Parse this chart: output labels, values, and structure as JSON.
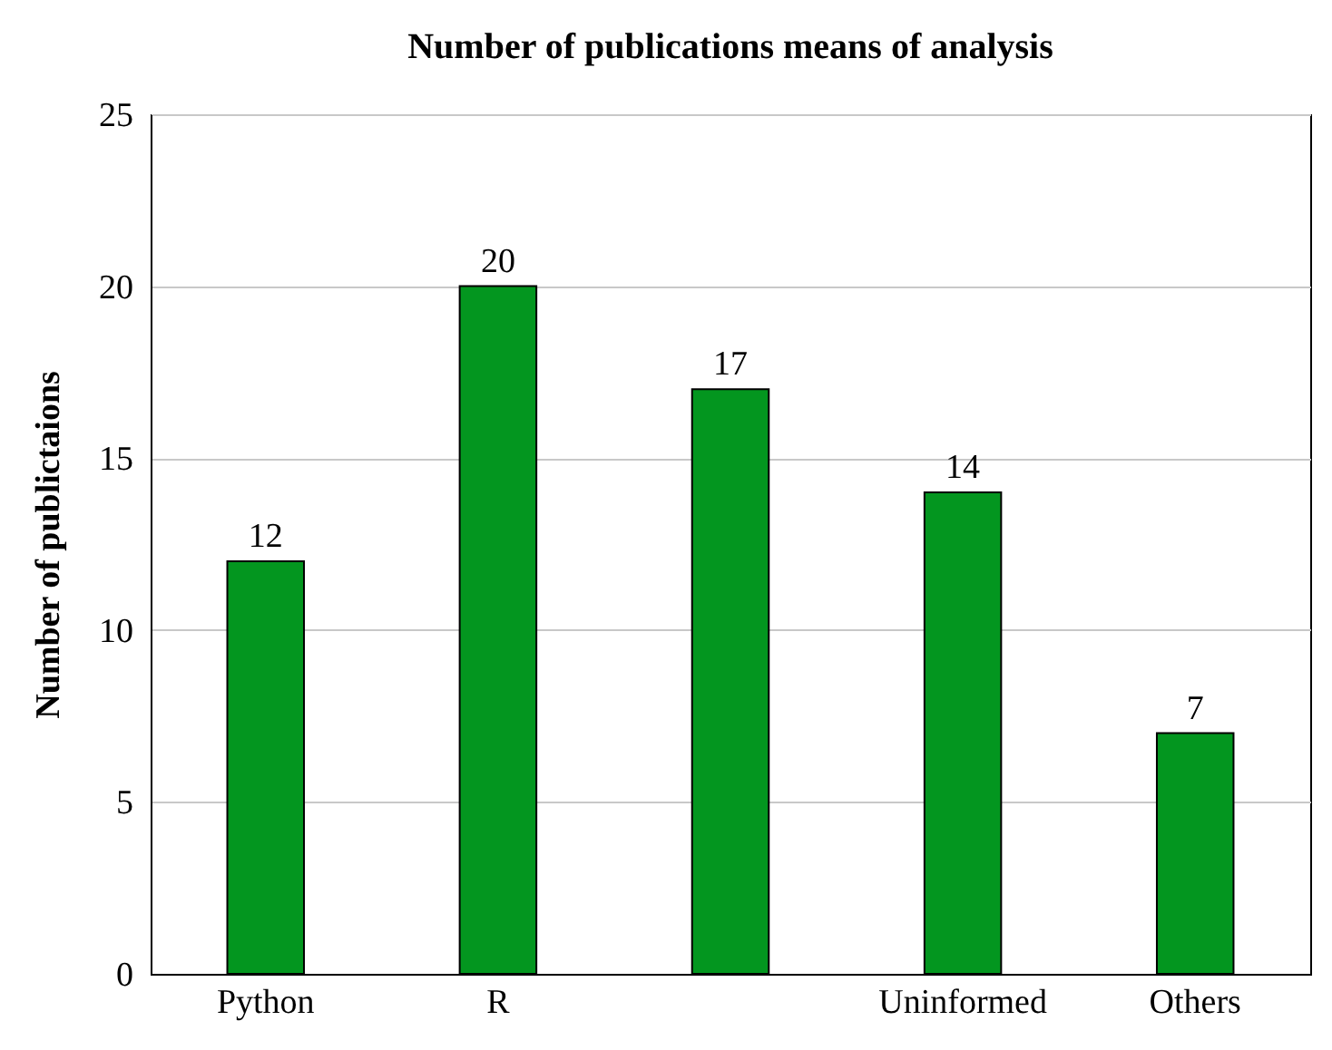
{
  "chart_data": {
    "type": "bar",
    "title": "Number of publications means of analysis",
    "ylabel": "Number of publictaions",
    "categories": [
      "Python",
      "R",
      null,
      "Uninformed",
      "Others"
    ],
    "values": [
      12,
      20,
      17,
      14,
      7
    ],
    "color": "#03961f",
    "ylim": [
      0,
      25
    ],
    "yticks": [
      0,
      5,
      10,
      15,
      20,
      25
    ],
    "grid": "y",
    "data_labels": true
  }
}
